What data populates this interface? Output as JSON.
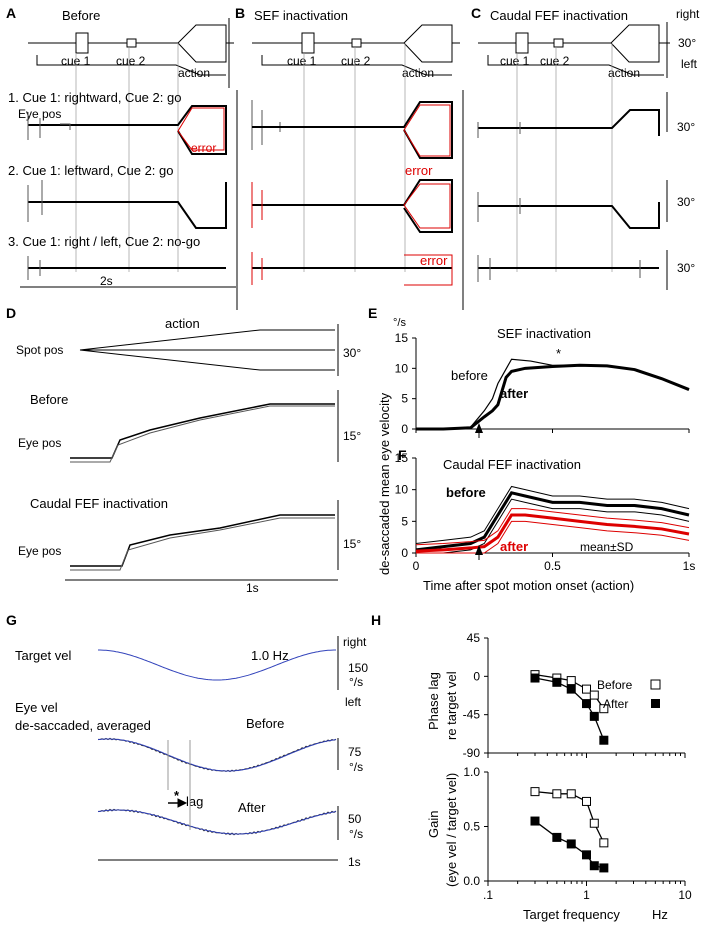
{
  "panels": {
    "A": {
      "letter": "A",
      "title": "Before"
    },
    "B": {
      "letter": "B",
      "title": "SEF inactivation"
    },
    "C": {
      "letter": "C",
      "title": "Caudal FEF inactivation"
    },
    "D": {
      "letter": "D"
    },
    "E": {
      "letter": "E",
      "title": "SEF inactivation"
    },
    "F": {
      "letter": "F",
      "title": "Caudal FEF inactivation"
    },
    "G": {
      "letter": "G"
    },
    "H": {
      "letter": "H"
    }
  },
  "top": {
    "cue1": "cue 1",
    "cue2": "cue 2",
    "action": "action",
    "right": "right",
    "left": "left",
    "deg30": "30°",
    "row1": "1. Cue 1: rightward, Cue 2: go",
    "row2": "2. Cue 1: leftward, Cue 2: go",
    "row3": "3. Cue 1: right / left, Cue 2: no-go",
    "eye_pos": "Eye pos",
    "error": "error",
    "scale": "2s"
  },
  "d": {
    "action": "action",
    "spot_pos": "Spot pos",
    "deg30": "30°",
    "before": "Before",
    "eye_pos": "Eye pos",
    "deg15": "15°",
    "caudal": "Caudal FEF inactivation",
    "scale": "1s"
  },
  "ef": {
    "ylabel": "de-saccaded mean eye velocity",
    "unit": "°/s",
    "before": "before",
    "after": "after",
    "star": "*",
    "meansd": "mean±SD",
    "xlabel": "Time after spot motion onset (action)"
  },
  "g": {
    "target_vel": "Target vel",
    "freq": "1.0 Hz",
    "right": "right",
    "left": "left",
    "v150": "150",
    "v75": "75",
    "v50": "50",
    "unit": "°/s",
    "eye_vel": "Eye vel",
    "desacc": "de-saccaded, averaged",
    "before": "Before",
    "after": "After",
    "star": "*",
    "lag": "lag",
    "scale": "1s"
  },
  "h": {
    "phase_label1": "Phase lag",
    "phase_label2": "re target vel",
    "gain_label1": "Gain",
    "gain_label2": "(eye vel / target vel)",
    "xlabel": "Target frequency",
    "xunit": "Hz",
    "legend_before": "Before",
    "legend_after": "After"
  },
  "chart_data": [
    {
      "type": "line",
      "title": "SEF inactivation",
      "xlabel": "Time after spot motion onset (action)",
      "ylabel": "de-saccaded mean eye velocity (°/s)",
      "xlim": [
        0,
        1
      ],
      "ylim": [
        0,
        15
      ],
      "xticks": [
        "0",
        "0.5",
        "1s"
      ],
      "yticks": [
        "0",
        "5",
        "10",
        "15"
      ],
      "series": [
        {
          "name": "before",
          "x": [
            0,
            0.1,
            0.2,
            0.25,
            0.28,
            0.3,
            0.35,
            0.42,
            0.5,
            0.6,
            0.7,
            0.8,
            0.9,
            1.0
          ],
          "y": [
            0,
            0,
            0.3,
            3,
            5,
            7.5,
            11.5,
            11.2,
            10.5,
            10.5,
            10.4,
            9.8,
            8.3,
            6.5
          ]
        },
        {
          "name": "after",
          "x": [
            0,
            0.1,
            0.2,
            0.25,
            0.28,
            0.3,
            0.33,
            0.35,
            0.4,
            0.5,
            0.6,
            0.7,
            0.8,
            0.9,
            1.0
          ],
          "y": [
            0,
            0,
            0.2,
            2,
            3,
            4,
            8.5,
            9.5,
            10,
            10.3,
            10.5,
            10.4,
            9.8,
            8.3,
            6.5
          ]
        }
      ]
    },
    {
      "type": "line",
      "title": "Caudal FEF inactivation",
      "xlabel": "Time after spot motion onset (action)",
      "ylabel": "de-saccaded mean eye velocity (°/s)",
      "xlim": [
        0,
        1
      ],
      "ylim": [
        0,
        15
      ],
      "xticks": [
        "0",
        "0.5",
        "1s"
      ],
      "yticks": [
        "0",
        "5",
        "10",
        "15"
      ],
      "series": [
        {
          "name": "before",
          "x": [
            0,
            0.1,
            0.2,
            0.25,
            0.3,
            0.35,
            0.4,
            0.5,
            0.6,
            0.7,
            0.8,
            0.9,
            1.0
          ],
          "y": [
            0.5,
            1,
            1.5,
            2.5,
            6,
            9.5,
            9,
            8,
            8,
            7.5,
            7.5,
            7,
            6
          ]
        },
        {
          "name": "after",
          "x": [
            0,
            0.1,
            0.2,
            0.25,
            0.3,
            0.35,
            0.4,
            0.5,
            0.6,
            0.7,
            0.8,
            0.9,
            1.0
          ],
          "y": [
            0.3,
            0.5,
            0.8,
            1,
            2.5,
            6,
            6,
            5.5,
            5,
            4.5,
            4.2,
            3.8,
            3
          ]
        }
      ]
    },
    {
      "type": "line",
      "title": "Phase lag re target vel",
      "xlabel": "Target frequency Hz",
      "ylabel": "Phase lag (deg)",
      "xscale": "log",
      "xlim": [
        0.1,
        10
      ],
      "ylim": [
        -90,
        45
      ],
      "yticks": [
        "45",
        "0",
        "-45",
        "-90"
      ],
      "series": [
        {
          "name": "Before",
          "x": [
            0.3,
            0.5,
            0.7,
            1.0,
            1.2,
            1.5
          ],
          "y": [
            2,
            -2,
            -5,
            -15,
            -22,
            -38
          ]
        },
        {
          "name": "After",
          "x": [
            0.3,
            0.5,
            0.7,
            1.0,
            1.2,
            1.5
          ],
          "y": [
            -2,
            -7,
            -15,
            -32,
            -47,
            -75
          ]
        }
      ]
    },
    {
      "type": "line",
      "title": "Gain (eye vel / target vel)",
      "xlabel": "Target frequency Hz",
      "ylabel": "Gain",
      "xscale": "log",
      "xlim": [
        0.1,
        10
      ],
      "ylim": [
        0,
        1
      ],
      "xticks": [
        ".1",
        "1",
        "10"
      ],
      "yticks": [
        "0.0",
        "0.5",
        "1.0"
      ],
      "series": [
        {
          "name": "Before",
          "x": [
            0.3,
            0.5,
            0.7,
            1.0,
            1.2,
            1.5
          ],
          "y": [
            0.82,
            0.8,
            0.8,
            0.73,
            0.53,
            0.35
          ]
        },
        {
          "name": "After",
          "x": [
            0.3,
            0.5,
            0.7,
            1.0,
            1.2,
            1.5
          ],
          "y": [
            0.55,
            0.4,
            0.34,
            0.24,
            0.14,
            0.12
          ]
        }
      ]
    }
  ]
}
